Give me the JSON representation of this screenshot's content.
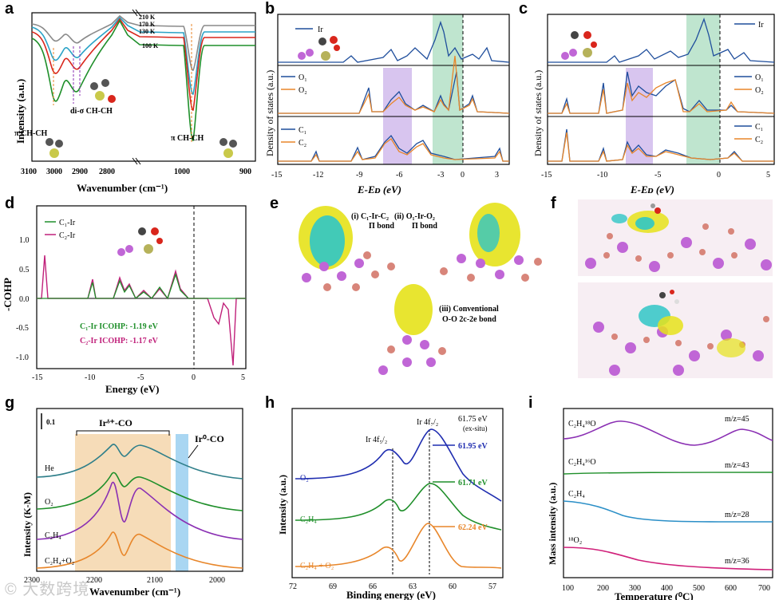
{
  "panel_labels": [
    "a",
    "b",
    "c",
    "d",
    "e",
    "f",
    "g",
    "h",
    "i"
  ],
  "colors": {
    "blue": "#1f4e9c",
    "orange": "#e8862a",
    "green": "#1f8f2a",
    "magenta": "#c0207a",
    "purple": "#8a2fb3",
    "red": "#d9261c",
    "gray": "#8a8a8a",
    "cyan": "#2ba3c7",
    "teal": "#2f7f8a"
  },
  "panel_a": {
    "ylabel": "Intensity (a.u.)",
    "xlabel": "Wavenumber (cm⁻¹)",
    "ticks": [
      "3100",
      "3000",
      "2900",
      "2800",
      "1000",
      "900"
    ],
    "legend": [
      "210 K",
      "170 K",
      "130 K",
      "100 K"
    ],
    "annotations": [
      "π CH-CH",
      "di-σ CH-CH",
      "π CH-CH"
    ]
  },
  "panel_b": {
    "ylabel": "Density of states (a.u.)",
    "xlabel": "E-Eᴅ (eV)",
    "ticks": [
      "-15",
      "-12",
      "-9",
      "-6",
      "-3",
      "0",
      "3"
    ],
    "legend": [
      "Ir",
      "O₁",
      "O₂",
      "C₁",
      "C₂"
    ]
  },
  "panel_c": {
    "ylabel": "Density of states (a.u.)",
    "xlabel": "E-Eᴅ (eV)",
    "ticks": [
      "-15",
      "-10",
      "-5",
      "0",
      "5"
    ],
    "legend": [
      "Ir",
      "O₁",
      "O₂",
      "C₁",
      "C₂"
    ]
  },
  "panel_d": {
    "ylabel": "-COHP",
    "xlabel": "Energy (eV)",
    "xticks": [
      "-15",
      "-10",
      "-5",
      "0",
      "5"
    ],
    "yticks": [
      "1.0",
      "0.5",
      "0.0",
      "-0.5",
      "-1.0"
    ],
    "legend": [
      "C₁-Ir",
      "C₂-Ir"
    ],
    "icohp": [
      "C₁-Ir    ICOHP: -1.19 eV",
      "C₂-Ir    ICOHP: -1.17 eV"
    ]
  },
  "panel_e": {
    "captions": [
      "(i) C₁-Ir-C₂",
      "Π bond",
      "(ii) O₁-Ir-O₂",
      "Π bond",
      "(iii) Conventional",
      "O-O 2c-2e bond"
    ]
  },
  "panel_g": {
    "ylabel": "Intensity (K-M)",
    "xlabel": "Wavenumber (cm⁻¹)",
    "ticks": [
      "2300",
      "2200",
      "2100",
      "2000"
    ],
    "scale": "0.1",
    "bands": [
      "Irᵟ⁺-CO",
      "Ir⁰-CO"
    ],
    "series": [
      "He",
      "O₂",
      "C₂H₄",
      "C₂H₄+O₂"
    ]
  },
  "panel_h": {
    "ylabel": "Intensity (a.u.)",
    "xlabel": "Binding energy (eV)",
    "ticks": [
      "72",
      "69",
      "66",
      "63",
      "60",
      "57"
    ],
    "peaks": [
      "Ir 4f₅/₂",
      "Ir 4f₇/₂"
    ],
    "values": [
      "61.75 eV",
      "(ex-situ)",
      "61.95 eV",
      "61.71 eV",
      "62.24 eV"
    ],
    "series": [
      "O₂",
      "C₂H₄",
      "C₂H₄ + O₂"
    ]
  },
  "panel_i": {
    "ylabel": "Mass intensity (a.u.)",
    "xlabel": "Temperature (⁰C)",
    "ticks": [
      "100",
      "200",
      "300",
      "400",
      "500",
      "600",
      "700"
    ],
    "series": [
      "C₂H₄¹⁸O",
      "C₂H₄¹⁶O",
      "C₂H₄",
      "¹⁸O₂"
    ],
    "mz": [
      "m/z=45",
      "m/z=43",
      "m/z=28",
      "m/z=36"
    ]
  },
  "watermark": "© 大数跨境"
}
